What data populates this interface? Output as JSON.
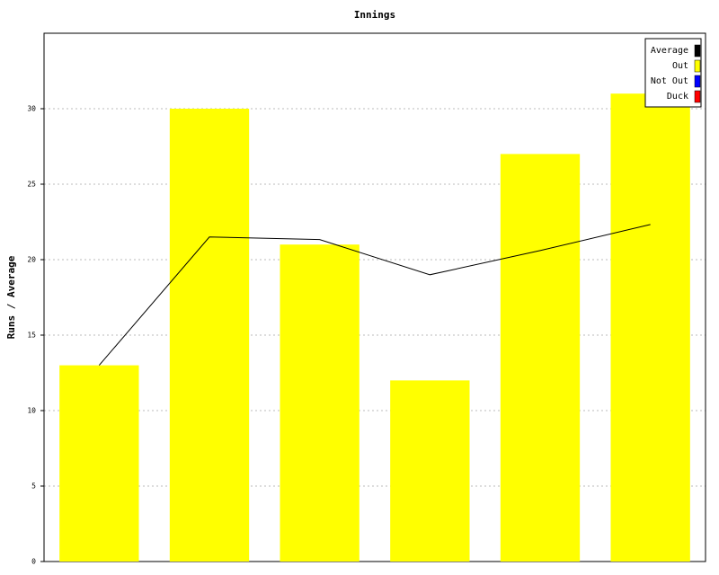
{
  "chart_data": {
    "type": "bar",
    "title": "Innings",
    "y_label": "Runs / Average",
    "categories": [
      null,
      null,
      null,
      null,
      null,
      null
    ],
    "series": [
      {
        "name": "Average",
        "color": "#000000",
        "type": "line",
        "values": [
          13,
          21.5,
          21.33,
          19,
          20.6,
          22.33
        ]
      },
      {
        "name": "Out",
        "color": "#ffff00",
        "values": [
          13,
          30,
          21,
          12,
          27,
          31
        ]
      },
      {
        "name": "Not Out",
        "color": "#0000ff",
        "values": [
          null,
          null,
          null,
          null,
          null,
          null
        ]
      },
      {
        "name": "Duck",
        "color": "#ff0000",
        "values": [
          null,
          null,
          null,
          null,
          null,
          null
        ]
      }
    ],
    "ylim": [
      0,
      35
    ],
    "yticks": [
      0,
      5,
      10,
      15,
      20,
      25,
      30
    ],
    "grid": true,
    "legend": "top-right"
  }
}
